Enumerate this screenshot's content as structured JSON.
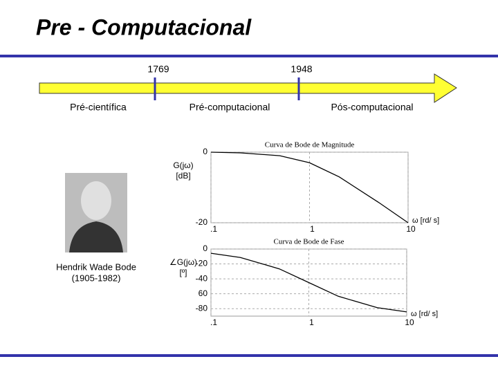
{
  "slide": {
    "title": "Pre  - Computacional",
    "years": [
      "1769",
      "1948"
    ],
    "eras": [
      "Pré-científica",
      "Pré-computacional",
      "Pós-computacional"
    ],
    "photo_caption": [
      "Hendrik Wade Bode",
      "(1905-1982)"
    ]
  },
  "chart_data": [
    {
      "type": "line",
      "title": "Curva de Bode de Magnitude",
      "y_label": [
        "G(jω)",
        "[dB]"
      ],
      "x_label": "ω [rd/ s]",
      "x": [
        0.1,
        0.2,
        0.5,
        1,
        2,
        5,
        10
      ],
      "values": [
        0,
        -0.2,
        -1,
        -3,
        -7,
        -14.2,
        -20
      ],
      "color": "#000000",
      "xscale": "log",
      "xlim": [
        0.1,
        10
      ],
      "xticks": [
        {
          "value": 0.1,
          "label": ".1"
        },
        1,
        10
      ],
      "ylim": [
        -20,
        0
      ],
      "yticks": [
        0,
        -20
      ],
      "grid": true
    },
    {
      "type": "line",
      "title": "Curva de Bode de Fase",
      "y_label": [
        "∠G(jω)",
        "[º]"
      ],
      "x_label": "ω [rd/ s]",
      "x": [
        0.1,
        0.2,
        0.5,
        1,
        2,
        5,
        10
      ],
      "values": [
        -5.7,
        -11.3,
        -26.6,
        -45,
        -63.4,
        -78.7,
        -84.3
      ],
      "color": "#000000",
      "xscale": "log",
      "xlim": [
        0.1,
        10
      ],
      "xticks": [
        {
          "value": 0.1,
          "label": ".1"
        },
        1,
        10
      ],
      "ylim": [
        -90,
        0
      ],
      "yticks": [
        0,
        -20,
        -40,
        {
          "value": -60,
          "label": "60"
        },
        -80
      ],
      "grid": true
    }
  ]
}
